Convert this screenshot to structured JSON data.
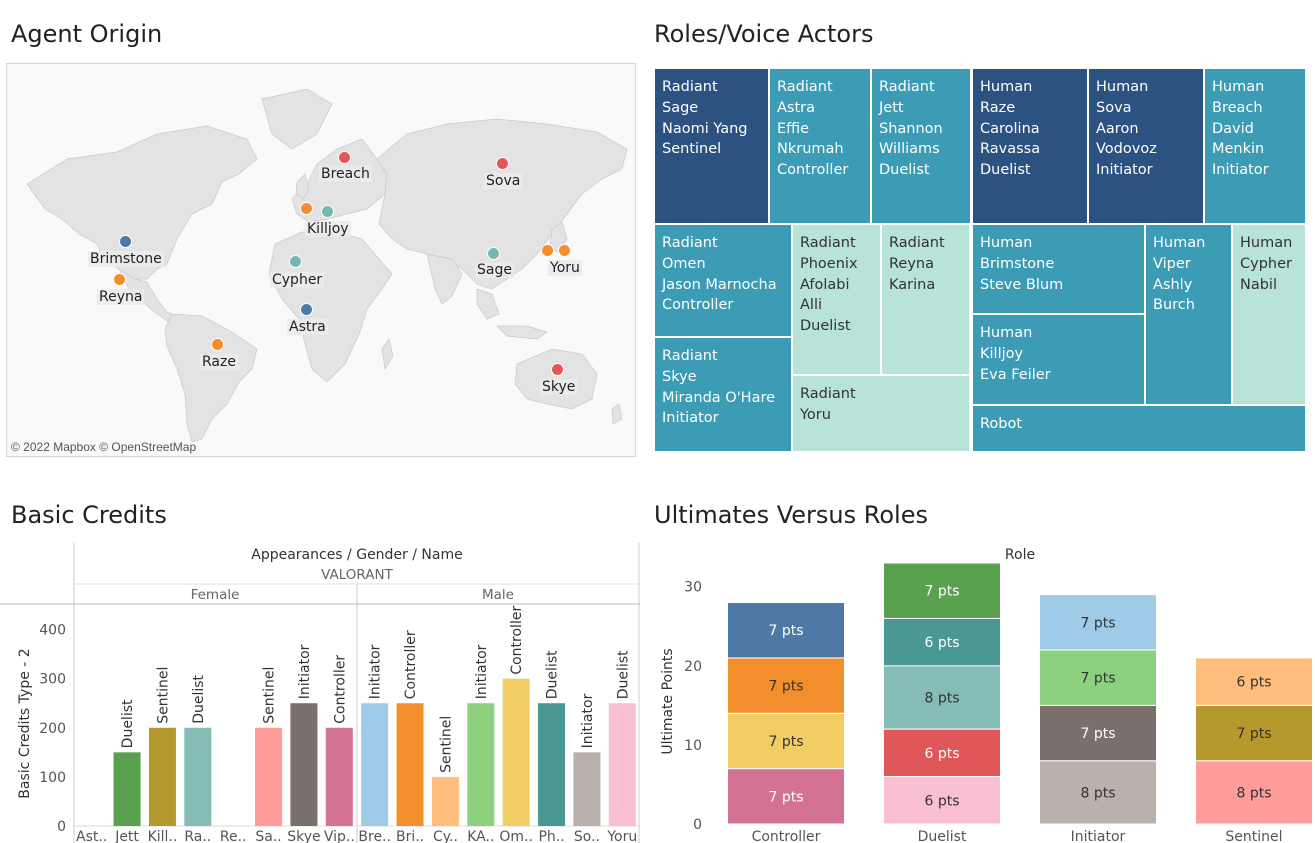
{
  "titles": {
    "origin": "Agent Origin",
    "roles": "Roles/Voice Actors",
    "credits": "Basic Credits",
    "ultimates": "Ultimates Versus Roles"
  },
  "map": {
    "copyright": "© 2022 Mapbox © OpenStreetMap",
    "markers": [
      {
        "name": "Breach",
        "color": "#e15759"
      },
      {
        "name": "Sova",
        "color": "#e15759"
      },
      {
        "name": "Killjoy",
        "color": "#76b7b2"
      },
      {
        "name": "Brimstone",
        "color": "#4e79a7"
      },
      {
        "name": "Reyna",
        "color": "#f28e2b"
      },
      {
        "name": "Cypher",
        "color": "#76b7b2"
      },
      {
        "name": "Sage",
        "color": "#76b7b2"
      },
      {
        "name": "Yoru",
        "color": "#f28e2b"
      },
      {
        "name": "Astra",
        "color": "#4e79a7"
      },
      {
        "name": "Raze",
        "color": "#f28e2b"
      },
      {
        "name": "Skye",
        "color": "#e15759"
      }
    ]
  },
  "treemap": {
    "tiles": [
      {
        "lines": [
          "Radiant",
          "Sage",
          "Naomi Yang",
          "Sentinel"
        ],
        "color": "#2c5282"
      },
      {
        "lines": [
          "Radiant",
          "Astra",
          "Effie",
          "Nkrumah",
          "Controller"
        ],
        "color": "#3c9bb5"
      },
      {
        "lines": [
          "Radiant",
          "Jett",
          "Shannon",
          "Williams",
          "Duelist"
        ],
        "color": "#3c9bb5"
      },
      {
        "lines": [
          "Human",
          "Raze",
          "Carolina",
          "Ravassa",
          "Duelist"
        ],
        "color": "#2c5282"
      },
      {
        "lines": [
          "Human",
          "Sova",
          "Aaron",
          "Vodovoz",
          "Initiator"
        ],
        "color": "#2c5282"
      },
      {
        "lines": [
          "Human",
          "Breach",
          "David",
          "Menkin",
          "Initiator"
        ],
        "color": "#3c9bb5"
      },
      {
        "lines": [
          "Radiant",
          "Omen",
          "Jason Marnocha",
          "Controller"
        ],
        "color": "#3c9bb5"
      },
      {
        "lines": [
          "Radiant",
          "Phoenix",
          "Afolabi",
          "Alli",
          "Duelist"
        ],
        "color": "#b7e3d8"
      },
      {
        "lines": [
          "Radiant",
          "Reyna",
          "Karina"
        ],
        "color": "#b7e3d8"
      },
      {
        "lines": [
          "Human",
          "Brimstone",
          "Steve Blum"
        ],
        "color": "#3c9bb5"
      },
      {
        "lines": [
          "Human",
          "Viper",
          "Ashly",
          "Burch"
        ],
        "color": "#3c9bb5"
      },
      {
        "lines": [
          "Human",
          "Cypher",
          "Nabil"
        ],
        "color": "#b7e3d8"
      },
      {
        "lines": [
          "Radiant",
          "Skye",
          "Miranda O'Hare",
          "Initiator"
        ],
        "color": "#3c9bb5"
      },
      {
        "lines": [
          "Radiant",
          "Yoru"
        ],
        "color": "#b7e3d8"
      },
      {
        "lines": [
          "Human",
          "Killjoy",
          "Eva Feiler"
        ],
        "color": "#3c9bb5"
      },
      {
        "lines": [
          "Robot"
        ],
        "color": "#3c9bb5"
      }
    ]
  },
  "chart_data": [
    {
      "type": "bar",
      "header": "Appearances / Gender / Name",
      "subheader": "VALORANT",
      "groups": [
        "Female",
        "Male"
      ],
      "ylabel": "Basic Credits Type - 2",
      "yticks": [
        0,
        100,
        200,
        300,
        400
      ],
      "ylim": [
        0,
        450
      ],
      "bars": [
        {
          "name": "Ast..",
          "value": null,
          "label": "",
          "color": "#4e79a7",
          "group": "Female"
        },
        {
          "name": "Jett",
          "value": 150,
          "label": "Duelist",
          "color": "#59a14f",
          "group": "Female"
        },
        {
          "name": "Kill..",
          "value": 200,
          "label": "Sentinel",
          "color": "#b6992d",
          "group": "Female"
        },
        {
          "name": "Ra..",
          "value": 200,
          "label": "Duelist",
          "color": "#86bcb6",
          "group": "Female"
        },
        {
          "name": "Re..",
          "value": null,
          "label": "",
          "color": "#e15759",
          "group": "Female"
        },
        {
          "name": "Sa..",
          "value": 200,
          "label": "Sentinel",
          "color": "#ff9d9a",
          "group": "Female"
        },
        {
          "name": "Skye",
          "value": 250,
          "label": "Initiator",
          "color": "#79706e",
          "group": "Female"
        },
        {
          "name": "Vip..",
          "value": 200,
          "label": "Controller",
          "color": "#d37295",
          "group": "Female"
        },
        {
          "name": "Bre..",
          "value": 250,
          "label": "Initiator",
          "color": "#a0cbe8",
          "group": "Male"
        },
        {
          "name": "Bri..",
          "value": 250,
          "label": "Controller",
          "color": "#f28e2b",
          "group": "Male"
        },
        {
          "name": "Cy..",
          "value": 100,
          "label": "Sentinel",
          "color": "#ffbe7d",
          "group": "Male"
        },
        {
          "name": "KA..",
          "value": 250,
          "label": "Initiator",
          "color": "#8cd17d",
          "group": "Male"
        },
        {
          "name": "Om..",
          "value": 300,
          "label": "Controller",
          "color": "#f1ce63",
          "group": "Male"
        },
        {
          "name": "Ph..",
          "value": 250,
          "label": "Duelist",
          "color": "#499894",
          "group": "Male"
        },
        {
          "name": "So..",
          "value": 150,
          "label": "Initiator",
          "color": "#bab0ac",
          "group": "Male"
        },
        {
          "name": "Yoru",
          "value": 250,
          "label": "Duelist",
          "color": "#fabfd2",
          "group": "Male"
        }
      ]
    },
    {
      "type": "bar",
      "stacked": true,
      "header": "Role",
      "ylabel": "Ultimate Points",
      "yticks": [
        0,
        10,
        20,
        30
      ],
      "ylim": [
        0,
        33
      ],
      "categories": [
        "Controller",
        "Duelist",
        "Initiator",
        "Sentinel"
      ],
      "stacks": [
        [
          {
            "value": 7,
            "label": "7 pts",
            "color": "#d37295"
          },
          {
            "value": 7,
            "label": "7 pts",
            "color": "#f1ce63"
          },
          {
            "value": 7,
            "label": "7 pts",
            "color": "#f28e2b"
          },
          {
            "value": 7,
            "label": "7 pts",
            "color": "#4e79a7"
          }
        ],
        [
          {
            "value": 6,
            "label": "6 pts",
            "color": "#fabfd2"
          },
          {
            "value": 6,
            "label": "6 pts",
            "color": "#e15759"
          },
          {
            "value": 8,
            "label": "8 pts",
            "color": "#86bcb6"
          },
          {
            "value": 6,
            "label": "6 pts",
            "color": "#499894"
          },
          {
            "value": 7,
            "label": "7 pts",
            "color": "#59a14f"
          }
        ],
        [
          {
            "value": 8,
            "label": "8 pts",
            "color": "#bab0ac"
          },
          {
            "value": 7,
            "label": "7 pts",
            "color": "#79706e"
          },
          {
            "value": 7,
            "label": "7 pts",
            "color": "#8cd17d"
          },
          {
            "value": 7,
            "label": "7 pts",
            "color": "#a0cbe8"
          }
        ],
        [
          {
            "value": 8,
            "label": "8 pts",
            "color": "#ff9d9a"
          },
          {
            "value": 7,
            "label": "7 pts",
            "color": "#b6992d"
          },
          {
            "value": 6,
            "label": "6 pts",
            "color": "#ffbe7d"
          }
        ]
      ]
    }
  ]
}
